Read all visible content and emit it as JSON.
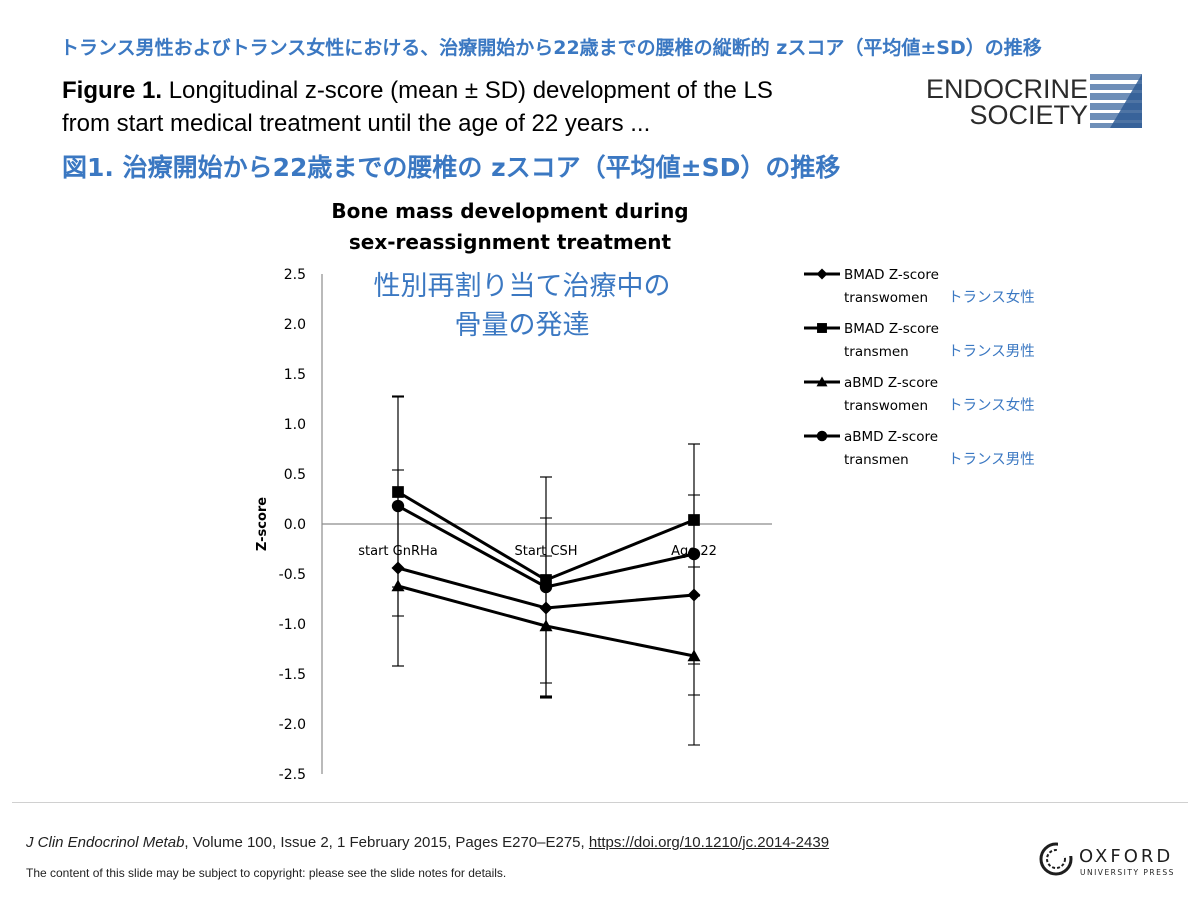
{
  "slide": {
    "jp_title": "トランス男性およびトランス女性における、治療開始から22歳までの腰椎の縦断的 zスコア（平均値±SD）の推移",
    "caption_bold": "Figure 1.",
    "caption_line1": " Longitudinal z-score (mean ± SD) development of the LS",
    "caption_line2": "from start medical treatment until the age of 22 years ...",
    "jp_subtitle": "図1. 治療開始から22歳までの腰椎の zスコア（平均値±SD）の推移",
    "logo_line1": "ENDOCRINE",
    "logo_line2": "SOCIETY",
    "citation_journal": "J Clin Endocrinol Metab",
    "citation_rest": ", Volume 100, Issue 2, 1 February 2015, Pages E270–E275, ",
    "citation_doi": "https://doi.org/10.1210/jc.2014-2439",
    "copyright": "The content of this slide may be subject to copyright: please see the slide notes for details.",
    "publisher_line1": "OXFORD",
    "publisher_line2": "UNIVERSITY PRESS",
    "accent_color": "#3b78c2"
  },
  "chart_data": {
    "type": "line",
    "title_line1": "Bone mass development during",
    "title_line2": "sex-reassignment treatment",
    "jp_title_line1": "性別再割り当て治療中の",
    "jp_title_line2": "骨量の発達",
    "ylabel": "Z-score",
    "xlabel": "",
    "ylim": [
      -2.5,
      2.5
    ],
    "ytick_step": 0.5,
    "yticks": [
      "2.5",
      "2.0",
      "1.5",
      "1.0",
      "0.5",
      "0.0",
      "-0.5",
      "-1.0",
      "-1.5",
      "-2.0",
      "-2.5"
    ],
    "categories": [
      "start GnRHa",
      "Start CSH",
      "Age 22"
    ],
    "grid": false,
    "legend_position": "right",
    "series": [
      {
        "name": "BMAD Z-score transwomen",
        "jp": "トランス女性",
        "marker": "diamond",
        "values": [
          -0.44,
          -0.84,
          -0.71
        ],
        "sd": [
          0.98,
          0.9,
          1.0
        ]
      },
      {
        "name": "BMAD Z-score transmen",
        "jp": "トランス男性",
        "marker": "square",
        "values": [
          0.32,
          -0.56,
          0.04
        ],
        "sd": [
          0.95,
          1.03,
          0.76
        ]
      },
      {
        "name": "aBMD Z-score transwomen",
        "jp": "トランス女性",
        "marker": "triangle",
        "values": [
          -0.62,
          -1.02,
          -1.32
        ],
        "sd": [
          0.8,
          0.7,
          0.89
        ]
      },
      {
        "name": "aBMD Z-score transmen",
        "jp": "トランス男性",
        "marker": "circle",
        "values": [
          0.18,
          -0.63,
          -0.3
        ],
        "sd": [
          1.1,
          1.1,
          1.1
        ]
      }
    ]
  }
}
